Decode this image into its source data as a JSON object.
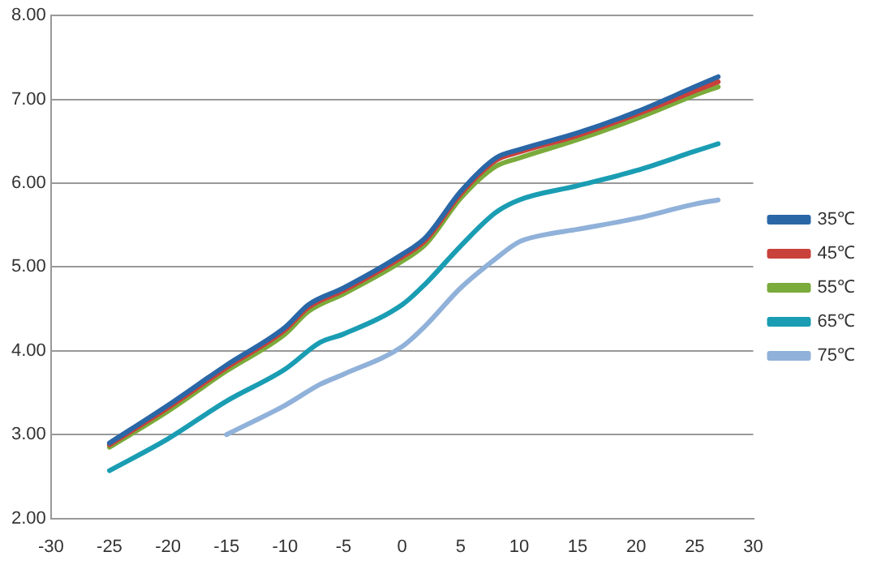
{
  "chart_data": {
    "type": "line",
    "xlim": [
      -30,
      30
    ],
    "xticks": [
      -30,
      -25,
      -20,
      -15,
      -10,
      -5,
      0,
      5,
      10,
      15,
      20,
      25,
      30
    ],
    "ylim": [
      2,
      8
    ],
    "yticks": [
      {
        "value": 2,
        "label": "2.00"
      },
      {
        "value": 3,
        "label": "3.00"
      },
      {
        "value": 4,
        "label": "4.00"
      },
      {
        "value": 5,
        "label": "5.00"
      },
      {
        "value": 6,
        "label": "6.00"
      },
      {
        "value": 7,
        "label": "7.00"
      },
      {
        "value": 8,
        "label": "8.00"
      }
    ],
    "grid": "y",
    "legend": "right",
    "marker": "none",
    "line_style": "solid",
    "series": [
      {
        "name": "35℃",
        "color": "#2a67a6",
        "x": [
          -25,
          -20,
          -15,
          -10,
          -8,
          -5,
          0,
          2,
          5,
          8,
          10,
          15,
          20,
          25,
          27
        ],
        "values": [
          2.9,
          3.35,
          3.83,
          4.28,
          4.55,
          4.75,
          5.15,
          5.35,
          5.9,
          6.3,
          6.4,
          6.6,
          6.85,
          7.15,
          7.27
        ]
      },
      {
        "name": "45℃",
        "color": "#c9413b",
        "x": [
          -25,
          -20,
          -15,
          -10,
          -8,
          -5,
          0,
          2,
          5,
          8,
          10,
          15,
          20,
          25,
          27
        ],
        "values": [
          2.88,
          3.32,
          3.8,
          4.25,
          4.52,
          4.72,
          5.12,
          5.32,
          5.87,
          6.27,
          6.37,
          6.57,
          6.82,
          7.1,
          7.21
        ]
      },
      {
        "name": "55℃",
        "color": "#7bab3b",
        "x": [
          -25,
          -20,
          -15,
          -10,
          -8,
          -5,
          0,
          2,
          5,
          8,
          10,
          15,
          20,
          25,
          27
        ],
        "values": [
          2.85,
          3.28,
          3.76,
          4.2,
          4.47,
          4.68,
          5.07,
          5.27,
          5.82,
          6.2,
          6.3,
          6.52,
          6.77,
          7.05,
          7.15
        ]
      },
      {
        "name": "65℃",
        "color": "#1a9db3",
        "x": [
          -25,
          -20,
          -15,
          -10,
          -7,
          -5,
          0,
          2,
          5,
          8,
          10,
          15,
          20,
          25,
          27
        ],
        "values": [
          2.57,
          2.95,
          3.4,
          3.78,
          4.1,
          4.2,
          4.55,
          4.8,
          5.25,
          5.65,
          5.8,
          5.97,
          6.15,
          6.38,
          6.47
        ]
      },
      {
        "name": "75℃",
        "color": "#90b1d9",
        "x": [
          -15,
          -10,
          -7,
          -5,
          0,
          2,
          5,
          8,
          10,
          12,
          15,
          20,
          25,
          27
        ],
        "values": [
          3.0,
          3.35,
          3.6,
          3.72,
          4.05,
          4.3,
          4.75,
          5.1,
          5.3,
          5.38,
          5.45,
          5.58,
          5.75,
          5.8
        ]
      }
    ]
  }
}
